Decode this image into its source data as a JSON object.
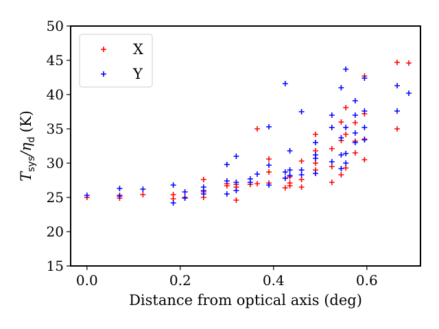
{
  "chart_data": {
    "type": "scatter",
    "xlabel": "Distance from optical axis (deg)",
    "ylabel_main": "T",
    "ylabel_sub1": "sys",
    "ylabel_sep": "/η",
    "ylabel_sub2": "d",
    "ylabel_unit": "(K)",
    "xlim": [
      -0.035,
      0.715
    ],
    "ylim": [
      15,
      50
    ],
    "xticks": [
      0.0,
      0.2,
      0.4,
      0.6
    ],
    "xtick_labels": [
      "0.0",
      "0.2",
      "0.4",
      "0.6"
    ],
    "yticks": [
      15,
      20,
      25,
      30,
      35,
      40,
      45,
      50
    ],
    "ytick_labels": [
      "15",
      "20",
      "25",
      "30",
      "35",
      "40",
      "45",
      "50"
    ],
    "legend_position": "upper-left",
    "series": [
      {
        "name": "X",
        "color": "#ff0000",
        "marker": "plus",
        "points": [
          [
            0.0,
            25.0
          ],
          [
            0.07,
            24.9
          ],
          [
            0.07,
            25.3
          ],
          [
            0.12,
            25.4
          ],
          [
            0.185,
            25.4
          ],
          [
            0.185,
            24.8
          ],
          [
            0.21,
            25.0
          ],
          [
            0.25,
            27.6
          ],
          [
            0.25,
            25.0
          ],
          [
            0.25,
            25.8
          ],
          [
            0.3,
            26.7
          ],
          [
            0.3,
            27.0
          ],
          [
            0.32,
            26.5
          ],
          [
            0.32,
            24.6
          ],
          [
            0.32,
            26.9
          ],
          [
            0.35,
            26.9
          ],
          [
            0.365,
            35.0
          ],
          [
            0.365,
            27.0
          ],
          [
            0.39,
            30.6
          ],
          [
            0.39,
            28.7
          ],
          [
            0.39,
            27.1
          ],
          [
            0.425,
            26.4
          ],
          [
            0.425,
            27.8
          ],
          [
            0.435,
            26.7
          ],
          [
            0.435,
            27.1
          ],
          [
            0.435,
            28.0
          ],
          [
            0.46,
            30.3
          ],
          [
            0.46,
            27.6
          ],
          [
            0.46,
            26.5
          ],
          [
            0.49,
            34.2
          ],
          [
            0.49,
            31.8
          ],
          [
            0.49,
            30.0
          ],
          [
            0.49,
            29.0
          ],
          [
            0.525,
            32.1
          ],
          [
            0.525,
            29.5
          ],
          [
            0.525,
            27.2
          ],
          [
            0.545,
            36.0
          ],
          [
            0.545,
            33.3
          ],
          [
            0.545,
            28.3
          ],
          [
            0.555,
            38.1
          ],
          [
            0.555,
            34.2
          ],
          [
            0.555,
            29.3
          ],
          [
            0.575,
            35.9
          ],
          [
            0.575,
            33.2
          ],
          [
            0.575,
            31.5
          ],
          [
            0.595,
            42.7
          ],
          [
            0.595,
            37.2
          ],
          [
            0.595,
            33.5
          ],
          [
            0.595,
            30.5
          ],
          [
            0.665,
            44.7
          ],
          [
            0.665,
            35.0
          ],
          [
            0.69,
            44.6
          ]
        ]
      },
      {
        "name": "Y",
        "color": "#0000ff",
        "marker": "plus",
        "points": [
          [
            0.0,
            25.3
          ],
          [
            0.07,
            26.3
          ],
          [
            0.07,
            25.2
          ],
          [
            0.12,
            26.2
          ],
          [
            0.185,
            26.8
          ],
          [
            0.185,
            24.2
          ],
          [
            0.21,
            25.8
          ],
          [
            0.21,
            24.9
          ],
          [
            0.25,
            26.5
          ],
          [
            0.25,
            26.0
          ],
          [
            0.25,
            25.5
          ],
          [
            0.3,
            29.8
          ],
          [
            0.3,
            27.4
          ],
          [
            0.3,
            25.5
          ],
          [
            0.32,
            31.0
          ],
          [
            0.32,
            27.2
          ],
          [
            0.32,
            26.0
          ],
          [
            0.35,
            27.7
          ],
          [
            0.35,
            27.2
          ],
          [
            0.365,
            28.4
          ],
          [
            0.39,
            35.3
          ],
          [
            0.39,
            29.7
          ],
          [
            0.39,
            26.8
          ],
          [
            0.425,
            41.6
          ],
          [
            0.425,
            28.7
          ],
          [
            0.425,
            27.8
          ],
          [
            0.435,
            31.8
          ],
          [
            0.435,
            29.0
          ],
          [
            0.435,
            28.2
          ],
          [
            0.46,
            37.5
          ],
          [
            0.46,
            29.0
          ],
          [
            0.46,
            28.3
          ],
          [
            0.49,
            33.0
          ],
          [
            0.49,
            31.2
          ],
          [
            0.49,
            30.7
          ],
          [
            0.49,
            28.5
          ],
          [
            0.525,
            37.0
          ],
          [
            0.525,
            35.2
          ],
          [
            0.525,
            30.2
          ],
          [
            0.545,
            41.0
          ],
          [
            0.545,
            33.7
          ],
          [
            0.545,
            31.2
          ],
          [
            0.545,
            29.2
          ],
          [
            0.555,
            43.7
          ],
          [
            0.555,
            35.2
          ],
          [
            0.555,
            31.4
          ],
          [
            0.555,
            30.0
          ],
          [
            0.575,
            39.1
          ],
          [
            0.575,
            37.0
          ],
          [
            0.575,
            34.4
          ],
          [
            0.575,
            33.0
          ],
          [
            0.595,
            42.4
          ],
          [
            0.595,
            37.6
          ],
          [
            0.595,
            35.2
          ],
          [
            0.595,
            33.4
          ],
          [
            0.665,
            41.3
          ],
          [
            0.665,
            37.6
          ],
          [
            0.69,
            40.2
          ]
        ]
      }
    ]
  }
}
